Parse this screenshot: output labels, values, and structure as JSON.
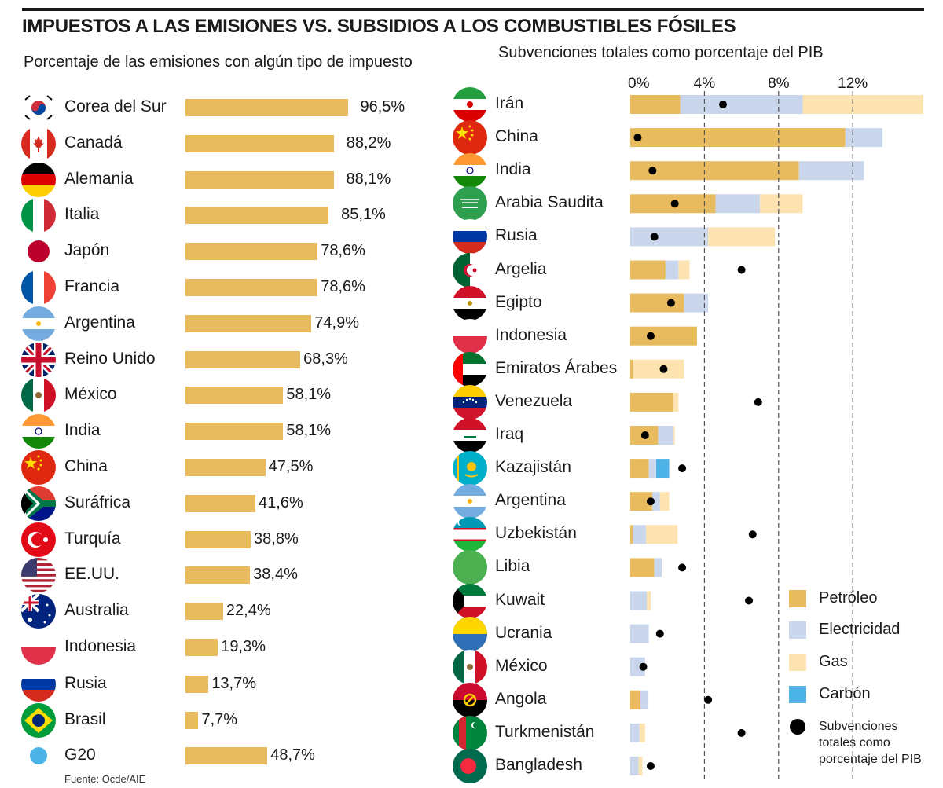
{
  "title": "IMPUESTOS A LAS EMISIONES VS. SUBSIDIOS A LOS COMBUSTIBLES FÓSILES",
  "source": "Fuente: Ocde/AIE",
  "colors": {
    "petroleo": "#e8bb5f",
    "electricidad": "#c9d6ec",
    "gas": "#fde3b0",
    "carbon": "#4db3e6",
    "dot": "#000000",
    "gridline": "#555555"
  },
  "chart_data": [
    {
      "type": "bar",
      "title": "Porcentaje de las emisiones con algún tipo de impuesto",
      "orientation": "horizontal",
      "categories": [
        "Corea del Sur",
        "Canadá",
        "Alemania",
        "Italia",
        "Japón",
        "Francia",
        "Argentina",
        "Reino Unido",
        "México",
        "India",
        "China",
        "Suráfrica",
        "Turquía",
        "EE.UU.",
        "Australia",
        "Indonesia",
        "Rusia",
        "Brasil",
        "G20"
      ],
      "values": [
        96.5,
        88.2,
        88.1,
        85.1,
        78.6,
        78.6,
        74.9,
        68.3,
        58.1,
        58.1,
        47.5,
        41.6,
        38.8,
        38.4,
        22.4,
        19.3,
        13.7,
        7.7,
        48.7
      ],
      "value_labels": [
        "96,5%",
        "88,2%",
        "88,1%",
        "85,1%",
        "78,6%",
        "78,6%",
        "74,9%",
        "68,3%",
        "58,1%",
        "58,1%",
        "47,5%",
        "41,6%",
        "38,8%",
        "38,4%",
        "22,4%",
        "19,3%",
        "13,7%",
        "7,7%",
        "48,7%"
      ],
      "xlim": [
        0,
        100
      ]
    },
    {
      "type": "bar",
      "stacked": true,
      "orientation": "horizontal",
      "title": "Subvenciones totales como porcentaje del PIB",
      "axis_ticks": [
        0,
        4,
        8,
        12
      ],
      "tick_labels": [
        "0%",
        "4%",
        "8%",
        "12%"
      ],
      "xlim": [
        0,
        15.8
      ],
      "categories": [
        "Irán",
        "China",
        "India",
        "Arabia Saudita",
        "Rusia",
        "Argelia",
        "Egipto",
        "Indonesia",
        "Emiratos Árabes",
        "Venezuela",
        "Iraq",
        "Kazajistán",
        "Argentina",
        "Uzbekistán",
        "Libia",
        "Kuwait",
        "Ucrania",
        "México",
        "Angola",
        "Turkmenistán",
        "Bangladesh"
      ],
      "series": [
        {
          "name": "Petróleo",
          "values": [
            2.7,
            11.6,
            9.1,
            4.6,
            0,
            1.9,
            2.9,
            3.6,
            0.15,
            2.3,
            1.5,
            1.0,
            1.2,
            0.15,
            1.3,
            0,
            0,
            0,
            0.55,
            0,
            0
          ]
        },
        {
          "name": "Electricidad",
          "values": [
            6.6,
            2.0,
            3.5,
            2.4,
            4.2,
            0.7,
            1.3,
            0,
            0,
            0,
            0.8,
            0.4,
            0.4,
            0.7,
            0.4,
            0.9,
            1.0,
            0.8,
            0.4,
            0.5,
            0.45
          ]
        },
        {
          "name": "Gas",
          "values": [
            6.5,
            0,
            0,
            2.3,
            3.6,
            0.6,
            0,
            0,
            2.75,
            0.3,
            0.1,
            0,
            0.5,
            1.7,
            0,
            0.2,
            0,
            0,
            0,
            0.3,
            0.2
          ]
        },
        {
          "name": "Carbón",
          "values": [
            0,
            0,
            0,
            0,
            0,
            0,
            0,
            0,
            0,
            0,
            0,
            0.7,
            0,
            0,
            0,
            0,
            0,
            0,
            0,
            0,
            0
          ]
        }
      ],
      "totals_dot": {
        "name": "Subvenciones totales como porcentaje del PIB",
        "values": [
          5.0,
          0.4,
          1.2,
          2.4,
          1.3,
          6.0,
          2.2,
          1.1,
          1.8,
          6.9,
          0.8,
          2.8,
          1.1,
          6.6,
          2.8,
          6.4,
          1.6,
          0.7,
          4.2,
          6.0,
          1.1
        ]
      },
      "legend": [
        "Petróleo",
        "Electricidad",
        "Gas",
        "Carbón",
        "Subvenciones totales como porcentaje del PIB"
      ],
      "legend_position": "bottom-right"
    }
  ]
}
